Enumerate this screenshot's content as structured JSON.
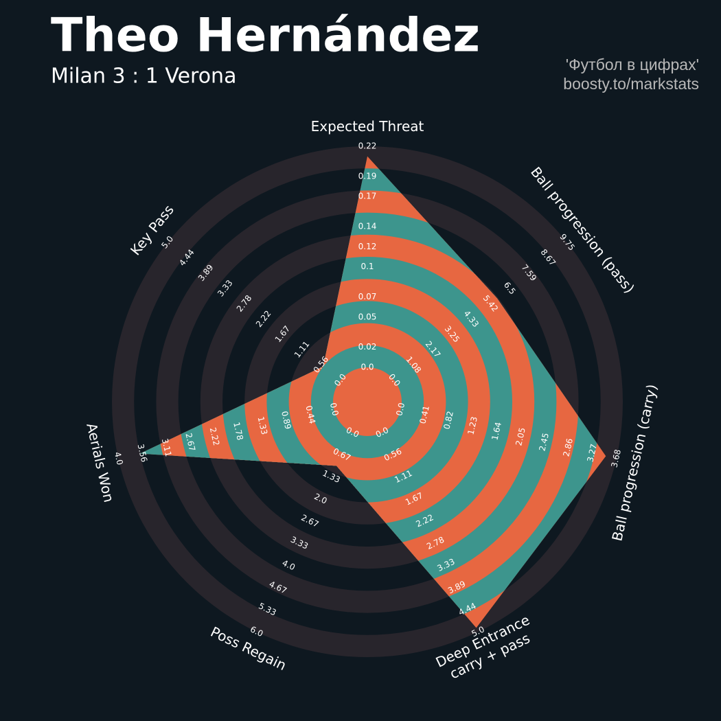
{
  "chart_data": {
    "type": "radar",
    "title": "Theo Hernández",
    "subtitle": "Milan 3 : 1 Verona",
    "credits": [
      "'Футбол в цифрах'",
      "boosty.to/markstats"
    ],
    "categories": [
      [
        "Expected Threat"
      ],
      [
        "Ball progression (pass)"
      ],
      [
        "Ball progression (carry)"
      ],
      [
        "Deep Entrance",
        "carry + pass"
      ],
      [
        "Poss Regain"
      ],
      [
        "Aerials Won"
      ],
      [
        "Key Pass"
      ]
    ],
    "values": [
      0.21,
      5.8,
      3.5,
      4.9,
      1.0,
      3.6,
      0.5
    ],
    "rlims": [
      [
        0,
        0.22
      ],
      [
        0,
        9.75
      ],
      [
        0,
        3.68
      ],
      [
        0,
        5
      ],
      [
        0,
        6
      ],
      [
        0,
        4
      ],
      [
        0,
        5
      ]
    ],
    "rticks": [
      [
        {
          "value": 0,
          "label": "0.0"
        },
        0.02,
        0.05,
        0.07,
        0.1,
        0.12,
        0.14,
        0.17,
        0.19,
        0.22
      ],
      [
        {
          "value": 0,
          "label": "0.0"
        },
        1.08,
        2.17,
        3.25,
        4.33,
        5.42,
        6.5,
        7.59,
        8.67,
        9.75
      ],
      [
        {
          "value": 0,
          "label": "0.0"
        },
        0.41,
        0.82,
        1.23,
        1.64,
        2.05,
        2.45,
        2.86,
        3.27,
        3.68
      ],
      [
        {
          "value": 0,
          "label": "0.0"
        },
        0.56,
        1.11,
        1.67,
        2.22,
        2.78,
        3.33,
        3.89,
        4.44,
        {
          "value": 5,
          "label": "5.0"
        }
      ],
      [
        {
          "value": 0,
          "label": "0.0"
        },
        0.67,
        1.33,
        {
          "value": 2,
          "label": "2.0"
        },
        2.67,
        3.33,
        {
          "value": 4,
          "label": "4.0"
        },
        4.67,
        5.33,
        {
          "value": 6,
          "label": "6.0"
        }
      ],
      [
        {
          "value": 0,
          "label": "0.0"
        },
        0.44,
        0.89,
        1.33,
        1.78,
        2.22,
        2.67,
        3.11,
        3.56,
        {
          "value": 4,
          "label": "4.0"
        }
      ],
      [
        {
          "value": 0,
          "label": "0.0"
        },
        0.56,
        1.11,
        1.67,
        2.22,
        2.78,
        3.33,
        3.89,
        4.44,
        {
          "value": 5,
          "label": "5.0"
        }
      ]
    ],
    "colors": {
      "background": "#0e1820",
      "ring": "#28252c",
      "fill": "#3d958d",
      "alt_fill": "#e76741"
    }
  }
}
